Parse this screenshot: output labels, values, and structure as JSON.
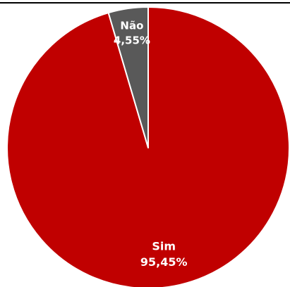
{
  "chart_data": {
    "type": "pie",
    "title": "",
    "categories": [
      "Sim",
      "Não"
    ],
    "values": [
      95.45,
      4.55
    ],
    "value_labels": [
      "95,45%",
      "4,55%"
    ],
    "colors": [
      "#c00000",
      "#595959"
    ],
    "legend": "none",
    "data_labels": "inside",
    "start_angle": "12 o'clock",
    "direction": "clockwise"
  }
}
